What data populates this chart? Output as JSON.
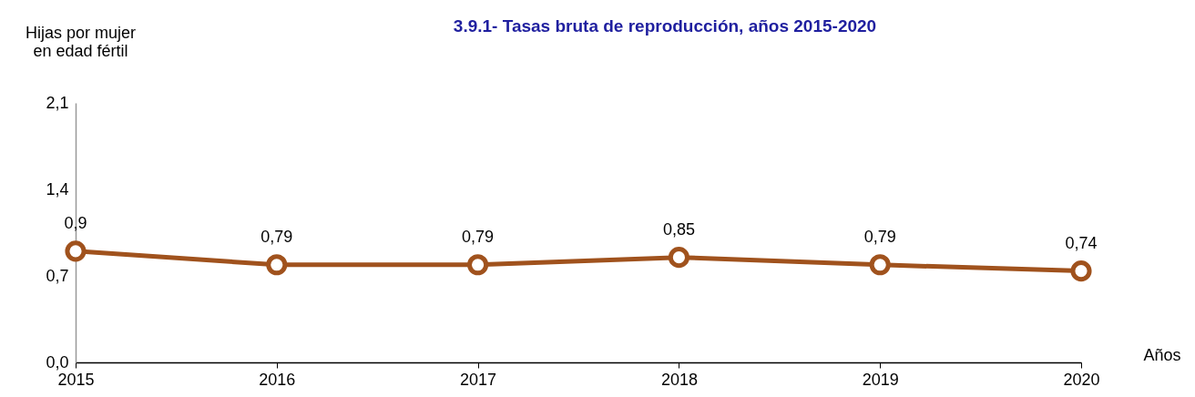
{
  "chart_data": {
    "type": "line",
    "title": "3.9.1- Tasas bruta de reproducción, años 2015-2020",
    "ylabel": "Hijas por mujer\nen edad fértil",
    "xlabel": "Años",
    "x": [
      2015,
      2016,
      2017,
      2018,
      2019,
      2020
    ],
    "series": [
      {
        "color": "#a0521d",
        "values": [
          0.9,
          0.79,
          0.79,
          0.85,
          0.79,
          0.74
        ],
        "value_labels": [
          "0,9",
          "0,79",
          "0,79",
          "0,85",
          "0,79",
          "0,74"
        ]
      }
    ],
    "xlim": [
      2015,
      2020
    ],
    "xticks": [
      2015,
      2016,
      2017,
      2018,
      2019,
      2020
    ],
    "ylim": [
      0,
      2.1
    ],
    "yticks": [
      {
        "value": 0,
        "label": "0,0"
      },
      {
        "value": 0.7,
        "label": "0,7"
      },
      {
        "value": 1.4,
        "label": "1,4"
      },
      {
        "value": 2.1,
        "label": "2,1"
      }
    ],
    "grid": false,
    "marker": "circle",
    "line_style": "solid",
    "legend": false
  }
}
